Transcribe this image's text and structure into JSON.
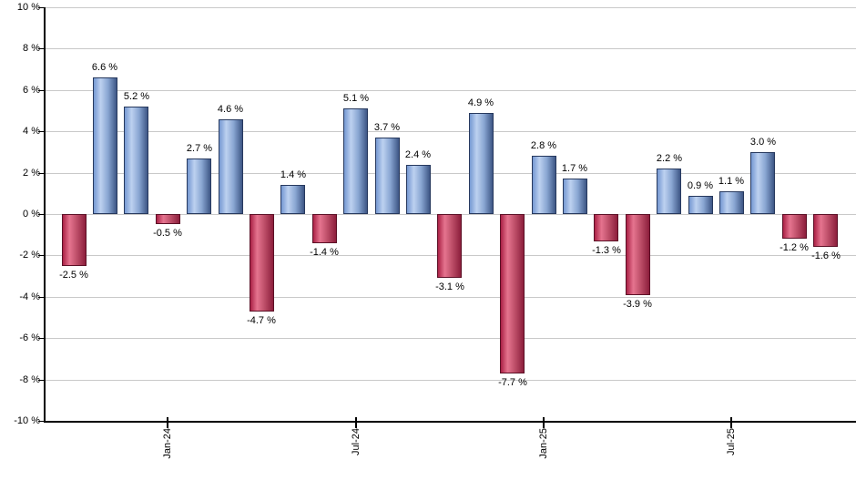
{
  "chart_data": {
    "type": "bar",
    "title": "",
    "xlabel": "",
    "ylabel": "",
    "ylim": [
      -10,
      10
    ],
    "grid": true,
    "values": [
      -2.5,
      6.6,
      5.2,
      -0.5,
      2.7,
      4.6,
      -4.7,
      1.4,
      -1.4,
      5.1,
      3.7,
      2.4,
      -3.1,
      4.9,
      -7.7,
      2.8,
      1.7,
      -1.3,
      -3.9,
      2.2,
      0.9,
      1.1,
      3.0,
      -1.2,
      -1.6
    ],
    "bar_labels": [
      "-2.5 %",
      "6.6 %",
      "5.2 %",
      "-0.5 %",
      "2.7 %",
      "4.6 %",
      "-4.7 %",
      "1.4 %",
      "-1.4 %",
      "5.1 %",
      "3.7 %",
      "2.4 %",
      "-3.1 %",
      "4.9 %",
      "-7.7 %",
      "2.8 %",
      "1.7 %",
      "-1.3 %",
      "-3.9 %",
      "2.2 %",
      "0.9 %",
      "1.1 %",
      "3.0 %",
      "-1.2 %",
      "-1.6 %"
    ],
    "y_ticks": [
      10,
      8,
      6,
      4,
      2,
      0,
      -2,
      -4,
      -6,
      -8,
      -10
    ],
    "y_tick_labels": [
      "10 %",
      "8 %",
      "6 %",
      "4 %",
      "2 %",
      "0 %",
      "-2 %",
      "-4 %",
      "-6 %",
      "-8 %",
      "-10 %"
    ],
    "x_ticks": [
      {
        "label": "Jan-24",
        "bar_index": 3
      },
      {
        "label": "Jul-24",
        "bar_index": 9
      },
      {
        "label": "Jan-25",
        "bar_index": 15
      },
      {
        "label": "Jul-25",
        "bar_index": 21
      }
    ],
    "colors": {
      "positive_gradient": [
        "#7598d2",
        "#bdd1f0",
        "#89a6d2",
        "#3d5685"
      ],
      "positive_border": "#27395e",
      "negative_gradient": [
        "#ab2146",
        "#e5748f",
        "#bd4e68",
        "#8c1e3c"
      ],
      "negative_border": "#5c1026",
      "gridline": "#c9c9c9",
      "axis": "#000000",
      "text": "#000000"
    }
  }
}
